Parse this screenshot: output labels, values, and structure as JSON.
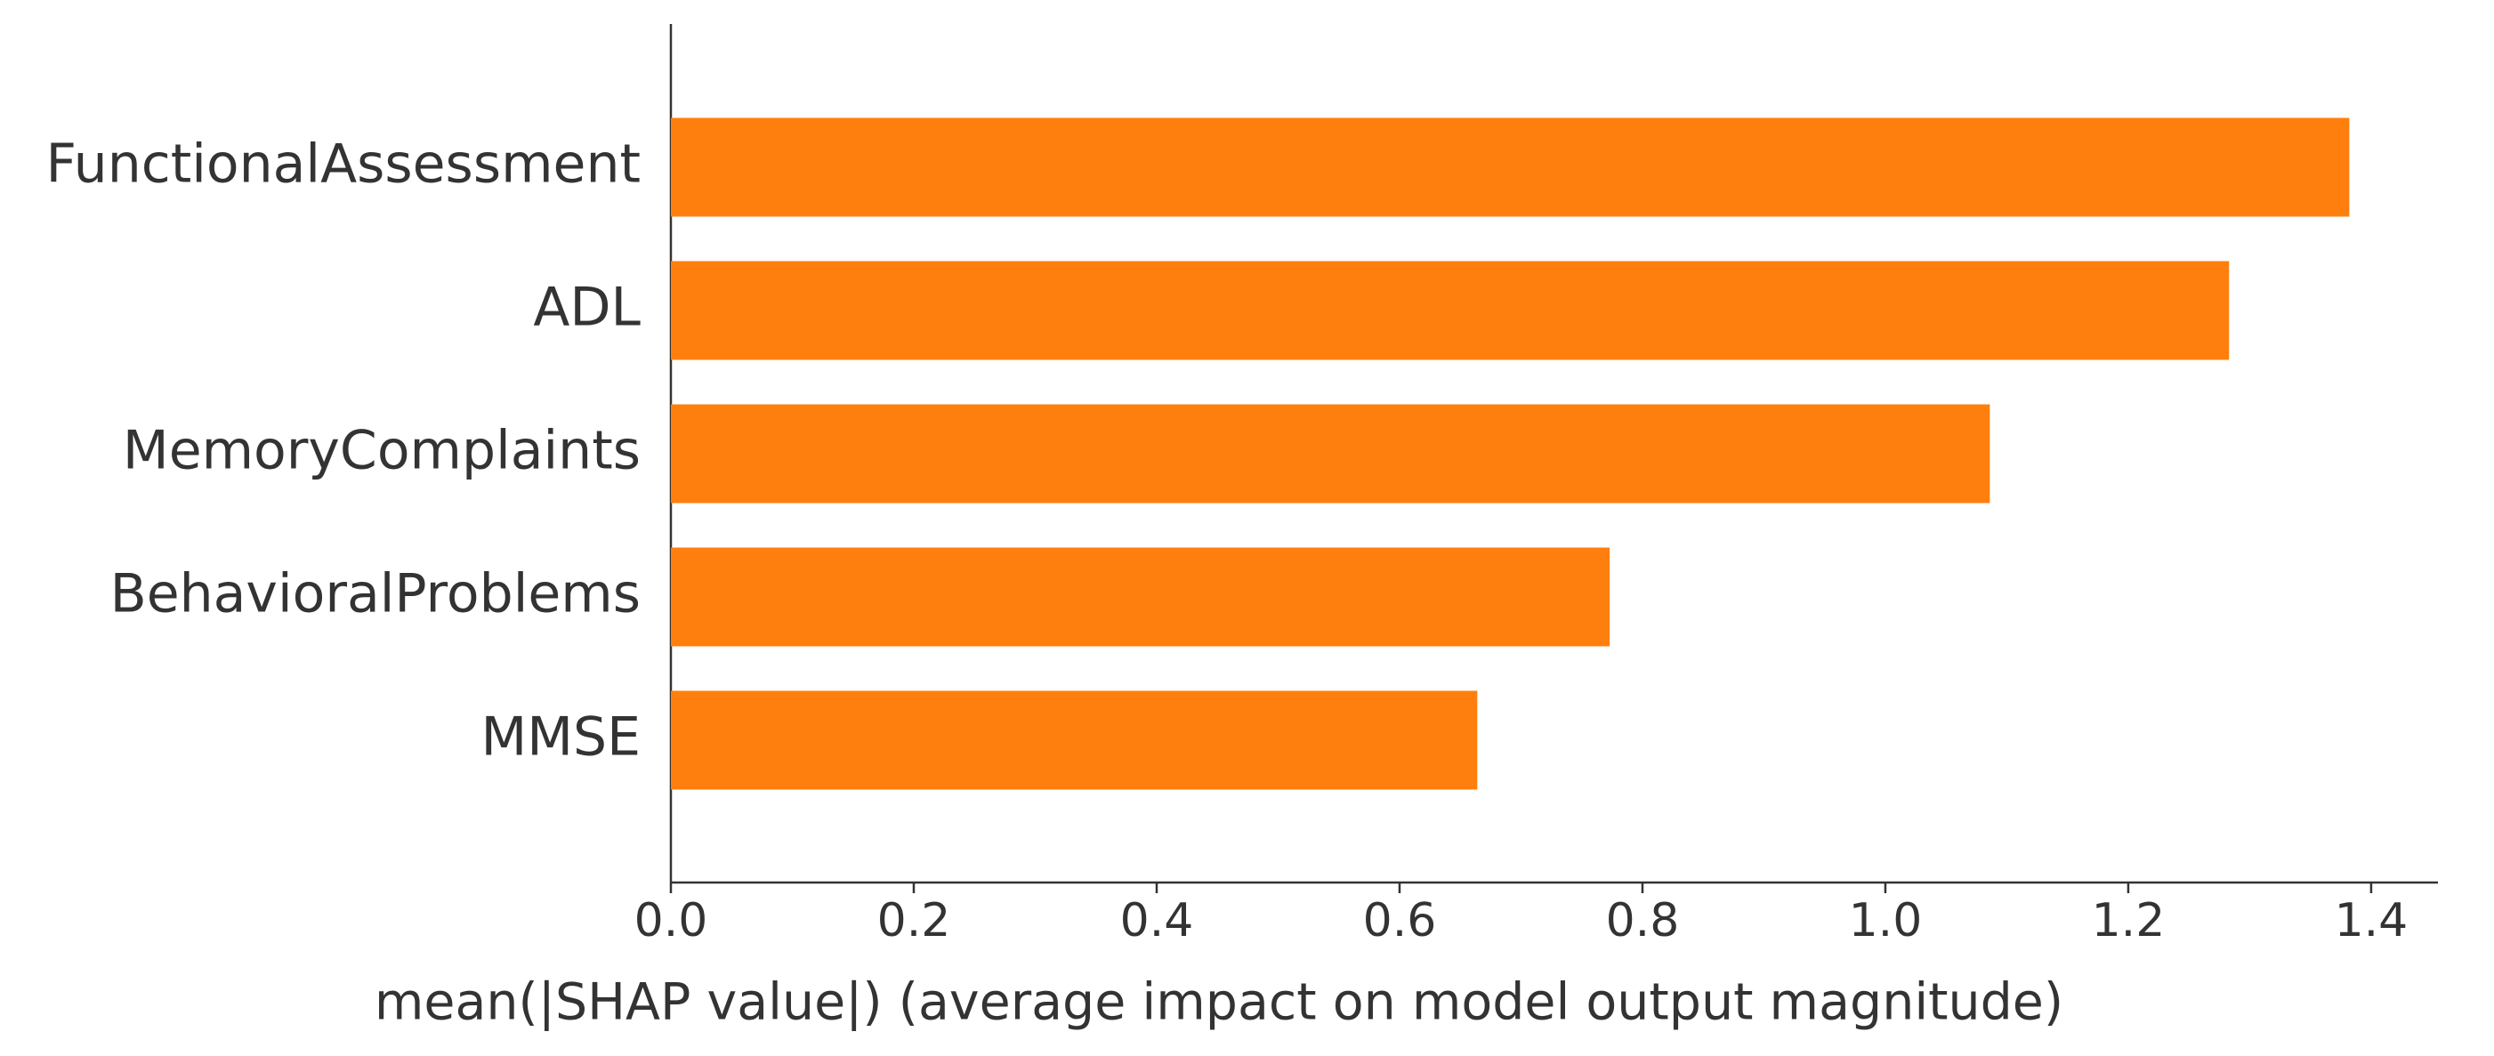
{
  "chart_data": {
    "type": "barh",
    "categories": [
      "FunctionalAssessment",
      "ADL",
      "MemoryComplaints",
      "BehavioralProblems",
      "MMSE"
    ],
    "values": [
      1.382,
      1.283,
      1.086,
      0.773,
      0.664
    ],
    "color": "#ff7f0e",
    "xlabel": "mean(|SHAP value|) (average impact on model output magnitude)",
    "xlim": [
      0,
      1.455
    ],
    "xticks": [
      {
        "value": 0,
        "label": "0.0"
      },
      0.2,
      0.4,
      0.6,
      0.8,
      {
        "value": 1,
        "label": "1.0"
      },
      1.2,
      1.4
    ],
    "grid": false
  }
}
